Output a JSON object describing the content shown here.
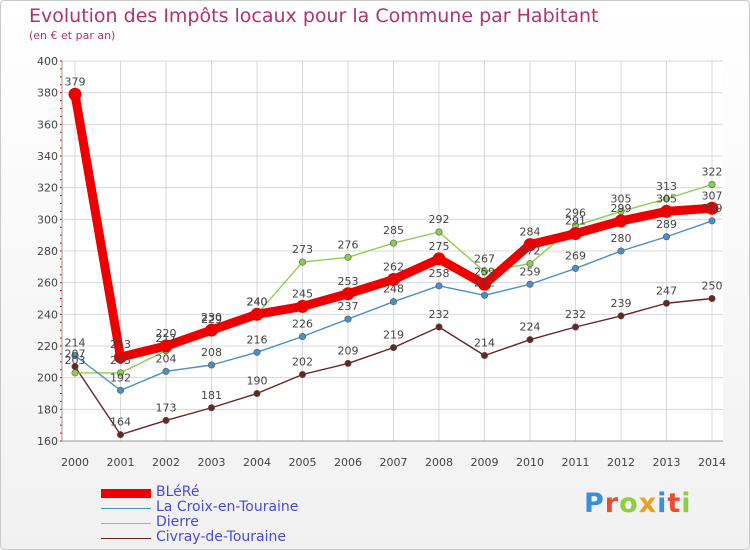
{
  "header": {
    "title": "Evolution des Impôts locaux pour la Commune par Habitant",
    "subtitle": "(en € et par an)"
  },
  "logo": {
    "text": "Proxiti",
    "colors": [
      "#3a8fd8",
      "#e94d2e",
      "#8fcf3a",
      "#f0a020",
      "#3a8fd8",
      "#e94d2e",
      "#8fcf3a"
    ]
  },
  "chart_data": {
    "type": "line",
    "title": "Evolution des Impôts locaux pour la Commune par Habitant",
    "ylabel": "(en € et par an)",
    "xlabel": "",
    "x": [
      "2000",
      "2001",
      "2002",
      "2003",
      "2004",
      "2005",
      "2006",
      "2007",
      "2008",
      "2009",
      "2010",
      "2011",
      "2012",
      "2013",
      "2014"
    ],
    "ylim": [
      160,
      400
    ],
    "yticks": [
      160,
      180,
      200,
      220,
      240,
      260,
      280,
      300,
      320,
      340,
      360,
      380,
      400
    ],
    "grid": true,
    "legend_position": "bottom-left",
    "series": [
      {
        "name": "BLéRé",
        "color": "#ee0000",
        "values": [
          379,
          213,
          220,
          230,
          240,
          245,
          253,
          262,
          275,
          259,
          284,
          291,
          299,
          305,
          307
        ]
      },
      {
        "name": "La Croix-en-Touraine",
        "color": "#4a90c8",
        "values": [
          214,
          192,
          204,
          208,
          216,
          226,
          237,
          248,
          258,
          252,
          259,
          269,
          280,
          289,
          299
        ]
      },
      {
        "name": "Dierre",
        "color": "#8ad04a",
        "values": [
          203,
          203,
          217,
          229,
          240,
          273,
          276,
          285,
          292,
          267,
          272,
          296,
          305,
          313,
          322
        ]
      },
      {
        "name": "Civray-de-Touraine",
        "color": "#6b2424",
        "values": [
          207,
          164,
          173,
          181,
          190,
          202,
          209,
          219,
          232,
          214,
          224,
          232,
          239,
          247,
          250
        ]
      }
    ]
  }
}
